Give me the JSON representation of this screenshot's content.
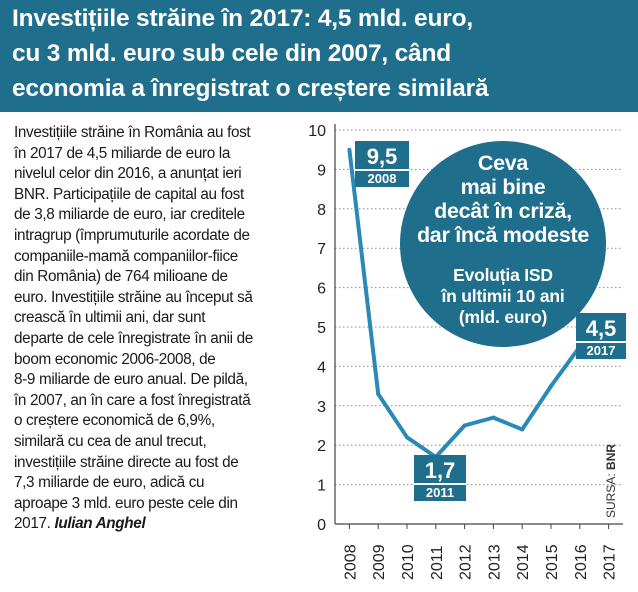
{
  "header": {
    "title_lines": [
      "Investițiile străine în 2017: 4,5 mld. euro,",
      "cu 3 mld. euro sub cele din 2007, când",
      "economia a înregistrat o creștere similară"
    ],
    "color": "#1f6e8c"
  },
  "article": {
    "lines": [
      "Investițiile străine în România au fost",
      "în 2017 de 4,5 miliarde de euro la",
      "nivelul celor din 2016, a anunțat ieri",
      "BNR. Participațiile de capital au fost",
      "de 3,8 miliarde de euro, iar creditele",
      "intragrup (împrumuturile acordate de",
      "companiile-mamă companiilor-fiice",
      "din România) de 764 milioane de",
      "euro. Investițiile străine au început să",
      "crească în ultimii ani, dar sunt",
      "departe de cele înregistrate în anii de",
      "boom economic 2006-2008, de",
      "8-9 miliarde de euro anual. De pildă,",
      "în 2007, an în care a fost înregistrată",
      "o creștere economică de 6,9%,",
      "similară cu cea de anul trecut,",
      "investițiile străine directe au fost de",
      "7,3 miliarde de euro, adică cu",
      "aproape 3 mld. euro peste cele din"
    ],
    "last_line": "2017.",
    "author": "Iulian Anghel"
  },
  "callout": {
    "title_lines": [
      "Ceva",
      "mai bine",
      "decât în criză,",
      "dar încă modeste"
    ],
    "subtitle_lines": [
      "Evoluția ISD",
      "în ultimii 10 ani",
      "(mld. euro)"
    ]
  },
  "source": {
    "label": "SURSA:",
    "value": "BNR"
  },
  "chart_data": {
    "type": "line",
    "x": [
      "2008",
      "2009",
      "2010",
      "2011",
      "2012",
      "2013",
      "2014",
      "2015",
      "2016",
      "2017"
    ],
    "values": [
      9.5,
      3.3,
      2.2,
      1.7,
      2.5,
      2.7,
      2.4,
      3.5,
      4.5,
      4.5
    ],
    "ylim": [
      0,
      10
    ],
    "yticks": [
      "0",
      "1",
      "2",
      "3",
      "4",
      "5",
      "6",
      "7",
      "8",
      "9",
      "10"
    ],
    "grid": true,
    "line_color": "#2a8ab5",
    "annotations": [
      {
        "value": "9,5",
        "year": "2008"
      },
      {
        "value": "1,7",
        "year": "2011"
      },
      {
        "value": "4,5",
        "year": "2017"
      }
    ]
  }
}
